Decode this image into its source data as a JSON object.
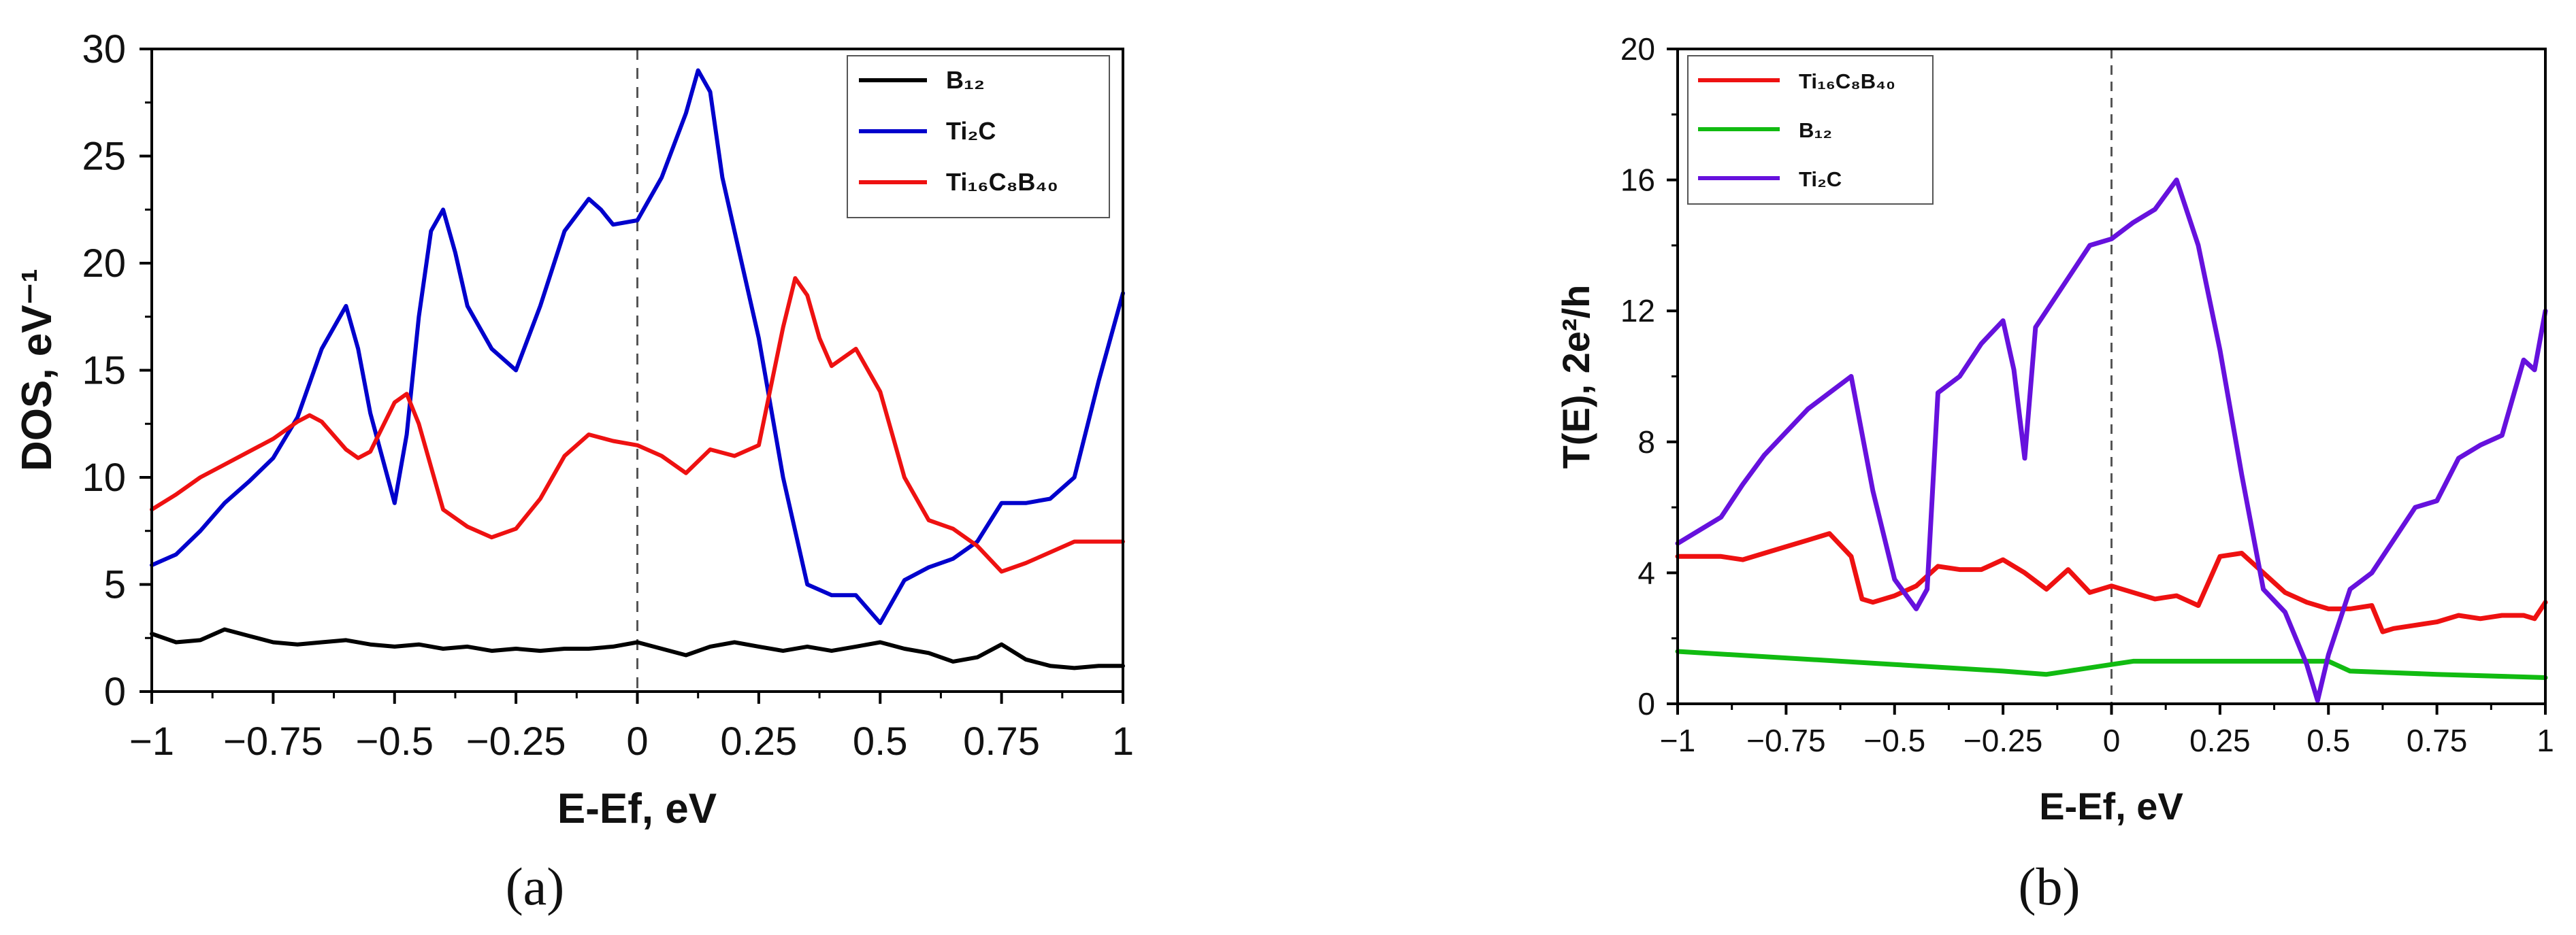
{
  "chart_data": [
    {
      "panel": "a",
      "type": "line",
      "xlabel": "E-Ef, eV",
      "ylabel": "DOS, eV⁻¹",
      "xlim": [
        -1,
        1
      ],
      "ylim": [
        0,
        30
      ],
      "xticks": [
        -1,
        -0.75,
        -0.5,
        -0.25,
        0,
        0.25,
        0.5,
        0.75,
        1
      ],
      "xtick_labels": [
        "−1",
        "−0.75",
        "−0.5",
        "−0.25",
        "0",
        "0.25",
        "0.5",
        "0.75",
        "1"
      ],
      "yticks": [
        0,
        5,
        10,
        15,
        20,
        25,
        30
      ],
      "ytick_labels": [
        "0",
        "5",
        "10",
        "15",
        "20",
        "25",
        "30"
      ],
      "fermi_line_x": 0,
      "legend_position": "top-right",
      "series": [
        {
          "name": "B₁₂",
          "color": "#000000",
          "x": [
            -1,
            -0.95,
            -0.9,
            -0.85,
            -0.8,
            -0.75,
            -0.7,
            -0.65,
            -0.6,
            -0.55,
            -0.5,
            -0.45,
            -0.4,
            -0.35,
            -0.3,
            -0.25,
            -0.2,
            -0.15,
            -0.1,
            -0.05,
            0,
            0.05,
            0.1,
            0.15,
            0.2,
            0.25,
            0.3,
            0.35,
            0.4,
            0.45,
            0.5,
            0.55,
            0.6,
            0.65,
            0.7,
            0.75,
            0.8,
            0.85,
            0.9,
            0.95,
            1
          ],
          "y": [
            2.7,
            2.3,
            2.4,
            2.9,
            2.6,
            2.3,
            2.2,
            2.3,
            2.4,
            2.2,
            2.1,
            2.2,
            2.0,
            2.1,
            1.9,
            2.0,
            1.9,
            2.0,
            2.0,
            2.1,
            2.3,
            2.0,
            1.7,
            2.1,
            2.3,
            2.1,
            1.9,
            2.1,
            1.9,
            2.1,
            2.3,
            2.0,
            1.8,
            1.4,
            1.6,
            2.2,
            1.5,
            1.2,
            1.1,
            1.2,
            1.2
          ]
        },
        {
          "name": "Ti₂C",
          "color": "#0000cc",
          "x": [
            -1,
            -0.95,
            -0.9,
            -0.85,
            -0.8,
            -0.75,
            -0.7,
            -0.65,
            -0.6,
            -0.575,
            -0.55,
            -0.5,
            -0.475,
            -0.45,
            -0.425,
            -0.4,
            -0.375,
            -0.35,
            -0.3,
            -0.25,
            -0.2,
            -0.15,
            -0.1,
            -0.075,
            -0.05,
            0,
            0.05,
            0.1,
            0.125,
            0.15,
            0.175,
            0.2,
            0.25,
            0.3,
            0.35,
            0.4,
            0.45,
            0.5,
            0.55,
            0.6,
            0.65,
            0.7,
            0.75,
            0.8,
            0.85,
            0.9,
            0.95,
            1
          ],
          "y": [
            5.9,
            6.4,
            7.5,
            8.8,
            9.8,
            10.9,
            12.8,
            16.0,
            18.0,
            16.0,
            13.0,
            8.8,
            12.0,
            17.5,
            21.5,
            22.5,
            20.5,
            18.0,
            16.0,
            15.0,
            18.0,
            21.5,
            23.0,
            22.5,
            21.8,
            22.0,
            24.0,
            27.0,
            29.0,
            28.0,
            24.0,
            21.5,
            16.5,
            10.0,
            5.0,
            4.5,
            4.5,
            3.2,
            5.2,
            5.8,
            6.2,
            7.0,
            8.8,
            8.8,
            9.0,
            10.0,
            14.5,
            18.6
          ]
        },
        {
          "name": "Ti₁₆C₈B₄₀",
          "color": "#ee1111",
          "x": [
            -1,
            -0.95,
            -0.9,
            -0.85,
            -0.8,
            -0.75,
            -0.7,
            -0.675,
            -0.65,
            -0.6,
            -0.575,
            -0.55,
            -0.5,
            -0.475,
            -0.45,
            -0.4,
            -0.35,
            -0.3,
            -0.25,
            -0.2,
            -0.15,
            -0.1,
            -0.05,
            0,
            0.05,
            0.1,
            0.15,
            0.2,
            0.25,
            0.3,
            0.325,
            0.35,
            0.375,
            0.4,
            0.45,
            0.5,
            0.55,
            0.6,
            0.65,
            0.7,
            0.75,
            0.8,
            0.85,
            0.9,
            0.95,
            1
          ],
          "y": [
            8.5,
            9.2,
            10.0,
            10.6,
            11.2,
            11.8,
            12.6,
            12.9,
            12.6,
            11.3,
            10.9,
            11.2,
            13.5,
            13.9,
            12.5,
            8.5,
            7.7,
            7.2,
            7.6,
            9.0,
            11.0,
            12.0,
            11.7,
            11.5,
            11.0,
            10.2,
            11.3,
            11.0,
            11.5,
            17.0,
            19.3,
            18.5,
            16.5,
            15.2,
            16.0,
            14.0,
            10.0,
            8.0,
            7.6,
            6.8,
            5.6,
            6.0,
            6.5,
            7.0,
            7.0,
            7.0
          ]
        }
      ],
      "caption": "(a)"
    },
    {
      "panel": "b",
      "type": "line",
      "xlabel": "E-Ef, eV",
      "ylabel": "T(E), 2e²/h",
      "xlim": [
        -1,
        1
      ],
      "ylim": [
        0,
        20
      ],
      "xticks": [
        -1,
        -0.75,
        -0.5,
        -0.25,
        0,
        0.25,
        0.5,
        0.75,
        1
      ],
      "xtick_labels": [
        "−1",
        "−0.75",
        "−0.5",
        "−0.25",
        "0",
        "0.25",
        "0.5",
        "0.75",
        "1"
      ],
      "yticks": [
        0,
        4,
        8,
        12,
        16,
        20
      ],
      "ytick_labels": [
        "0",
        "4",
        "8",
        "12",
        "16",
        "20"
      ],
      "fermi_line_x": 0,
      "legend_position": "top-left",
      "series": [
        {
          "name": "Ti₁₆C₈B₄₀",
          "color": "#ee1111",
          "x": [
            -1,
            -0.9,
            -0.85,
            -0.8,
            -0.75,
            -0.7,
            -0.65,
            -0.6,
            -0.575,
            -0.55,
            -0.5,
            -0.45,
            -0.4,
            -0.35,
            -0.3,
            -0.25,
            -0.2,
            -0.15,
            -0.1,
            -0.05,
            0,
            0.05,
            0.1,
            0.15,
            0.2,
            0.25,
            0.3,
            0.35,
            0.4,
            0.45,
            0.5,
            0.55,
            0.6,
            0.625,
            0.65,
            0.7,
            0.75,
            0.8,
            0.85,
            0.9,
            0.95,
            0.975,
            1
          ],
          "y": [
            4.5,
            4.5,
            4.4,
            4.6,
            4.8,
            5.0,
            5.2,
            4.5,
            3.2,
            3.1,
            3.3,
            3.6,
            4.2,
            4.1,
            4.1,
            4.4,
            4.0,
            3.5,
            4.1,
            3.4,
            3.6,
            3.4,
            3.2,
            3.3,
            3.0,
            4.5,
            4.6,
            4.0,
            3.4,
            3.1,
            2.9,
            2.9,
            3.0,
            2.2,
            2.3,
            2.4,
            2.5,
            2.7,
            2.6,
            2.7,
            2.7,
            2.6,
            3.1
          ]
        },
        {
          "name": "B₁₂",
          "color": "#11bb11",
          "x": [
            -1,
            -0.75,
            -0.5,
            -0.25,
            -0.15,
            -0.1,
            0,
            0.05,
            0.25,
            0.4,
            0.5,
            0.55,
            0.75,
            1
          ],
          "y": [
            1.6,
            1.4,
            1.2,
            1.0,
            0.9,
            1.0,
            1.2,
            1.3,
            1.3,
            1.3,
            1.3,
            1.0,
            0.9,
            0.8
          ]
        },
        {
          "name": "Ti₂C",
          "color": "#6611dd",
          "x": [
            -1,
            -0.9,
            -0.85,
            -0.8,
            -0.75,
            -0.7,
            -0.65,
            -0.6,
            -0.55,
            -0.5,
            -0.45,
            -0.425,
            -0.4,
            -0.35,
            -0.3,
            -0.25,
            -0.225,
            -0.2,
            -0.175,
            -0.15,
            -0.1,
            -0.05,
            0,
            0.05,
            0.1,
            0.15,
            0.2,
            0.25,
            0.3,
            0.35,
            0.4,
            0.45,
            0.475,
            0.5,
            0.55,
            0.6,
            0.65,
            0.7,
            0.75,
            0.8,
            0.85,
            0.9,
            0.95,
            0.975,
            1
          ],
          "y": [
            4.9,
            5.7,
            6.7,
            7.6,
            8.3,
            9.0,
            9.5,
            10.0,
            6.5,
            3.8,
            2.9,
            3.5,
            9.5,
            10.0,
            11.0,
            11.7,
            10.2,
            7.5,
            11.5,
            12.0,
            13.0,
            14.0,
            14.2,
            14.7,
            15.1,
            16.0,
            14.0,
            10.8,
            7.0,
            3.5,
            2.8,
            1.2,
            0.1,
            1.5,
            3.5,
            4.0,
            5.0,
            6.0,
            6.2,
            7.5,
            7.9,
            8.2,
            10.5,
            10.2,
            12.0
          ]
        }
      ],
      "caption": "(b)"
    }
  ]
}
